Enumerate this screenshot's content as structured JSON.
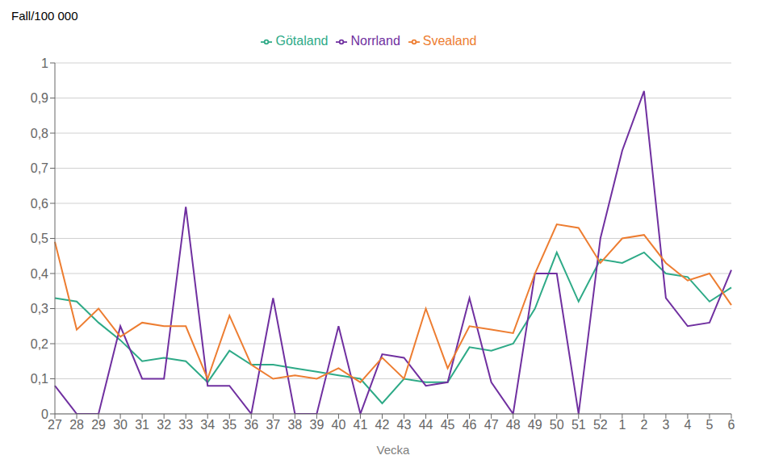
{
  "chart_data": {
    "type": "line",
    "y_label": "Fall/100 000",
    "x_label": "Vecka",
    "categories": [
      "27",
      "28",
      "29",
      "30",
      "31",
      "32",
      "33",
      "34",
      "35",
      "36",
      "37",
      "38",
      "39",
      "40",
      "41",
      "42",
      "43",
      "44",
      "45",
      "46",
      "47",
      "48",
      "49",
      "50",
      "51",
      "52",
      "1",
      "2",
      "3",
      "4",
      "5",
      "6"
    ],
    "series": [
      {
        "name": "Götaland",
        "color": "#2eaa87",
        "values": [
          0.33,
          0.32,
          0.26,
          0.21,
          0.15,
          0.16,
          0.15,
          0.09,
          0.18,
          0.14,
          0.14,
          0.13,
          0.12,
          0.11,
          0.1,
          0.03,
          0.1,
          0.09,
          0.09,
          0.19,
          0.18,
          0.2,
          0.3,
          0.46,
          0.32,
          0.44,
          0.43,
          0.46,
          0.4,
          0.39,
          0.32,
          0.36
        ]
      },
      {
        "name": "Norrland",
        "color": "#7030a0",
        "values": [
          0.08,
          0.0,
          0.0,
          0.25,
          0.1,
          0.1,
          0.59,
          0.08,
          0.08,
          0.0,
          0.33,
          0.0,
          0.0,
          0.25,
          0.0,
          0.17,
          0.16,
          0.08,
          0.09,
          0.33,
          0.09,
          0.0,
          0.4,
          0.4,
          0.0,
          0.5,
          0.75,
          0.92,
          0.33,
          0.25,
          0.26,
          0.41
        ]
      },
      {
        "name": "Svealand",
        "color": "#ed7d31",
        "values": [
          0.49,
          0.24,
          0.3,
          0.22,
          0.26,
          0.25,
          0.25,
          0.1,
          0.28,
          0.14,
          0.1,
          0.11,
          0.1,
          0.13,
          0.09,
          0.16,
          0.1,
          0.3,
          0.13,
          0.25,
          0.24,
          0.23,
          0.4,
          0.54,
          0.53,
          0.43,
          0.5,
          0.51,
          0.43,
          0.38,
          0.4,
          0.31
        ]
      }
    ],
    "ylim": [
      0,
      1.0
    ],
    "yticks": [
      0,
      {
        "value": 0.1,
        "label": "0,1"
      },
      {
        "value": 0.2,
        "label": "0,2"
      },
      {
        "value": 0.3,
        "label": "0,3"
      },
      {
        "value": 0.4,
        "label": "0,4"
      },
      {
        "value": 0.5,
        "label": "0,5"
      },
      {
        "value": 0.6,
        "label": "0,6"
      },
      {
        "value": 0.7,
        "label": "0,7"
      },
      {
        "value": 0.8,
        "label": "0,8"
      },
      {
        "value": 0.9,
        "label": "0,9"
      },
      1
    ],
    "grid": true,
    "legend": "top"
  }
}
